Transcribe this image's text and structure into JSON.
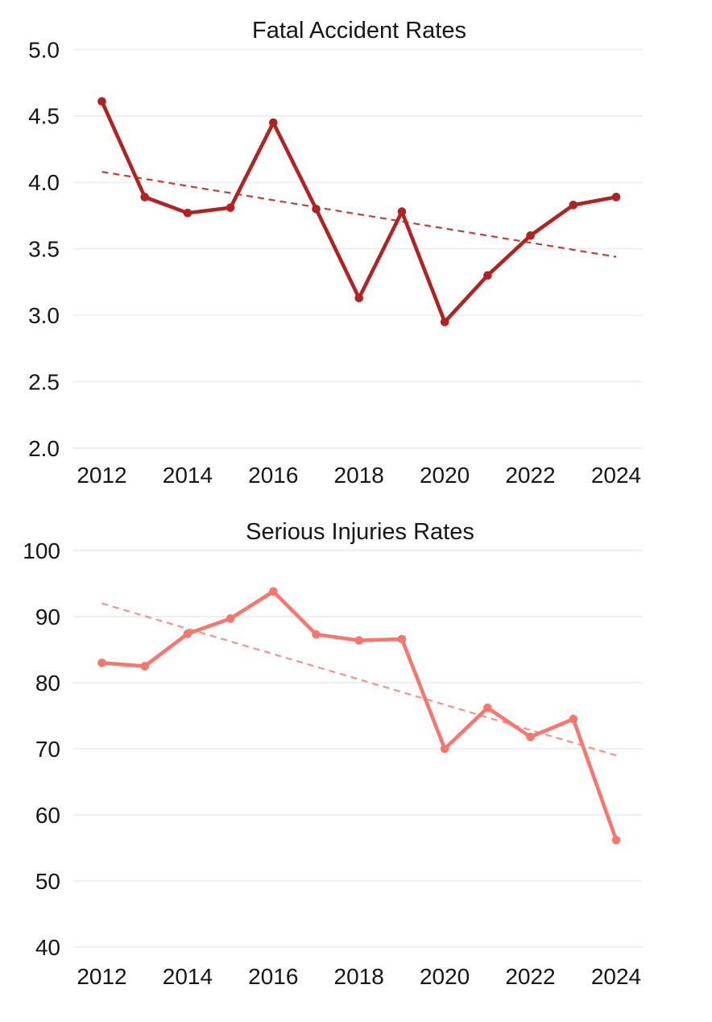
{
  "page": {
    "background_color": "#ffffff",
    "text_color": "#161616",
    "gridline_color": "#efefef"
  },
  "chart_data": [
    {
      "type": "line",
      "title": "Fatal Accident Rates",
      "xlabel": "",
      "ylabel": "",
      "x": [
        2012,
        2013,
        2014,
        2015,
        2016,
        2017,
        2018,
        2019,
        2020,
        2021,
        2022,
        2023,
        2024
      ],
      "series": [
        {
          "name": "fatal_accident_rate",
          "color": "#B22222",
          "marker": "circle",
          "values": [
            4.61,
            3.89,
            3.77,
            3.81,
            4.45,
            3.8,
            3.13,
            3.78,
            2.95,
            3.3,
            3.6,
            3.83,
            3.89
          ]
        }
      ],
      "trendline": {
        "name": "fatal_trend",
        "style": "dashed",
        "color": "#C43E3E",
        "x_start": 2012,
        "x_end": 2024,
        "y_start": 4.08,
        "y_end": 3.44
      },
      "xlim": [
        2012,
        2024
      ],
      "ylim": [
        2.0,
        5.0
      ],
      "y_ticks": [
        "5.0",
        "4.5",
        "4.0",
        "3.5",
        "3.0",
        "2.5",
        "2.0"
      ],
      "x_ticks": [
        "2012",
        "2014",
        "2016",
        "2018",
        "2020",
        "2022",
        "2024"
      ],
      "grid": "horizontal",
      "legend": false
    },
    {
      "type": "line",
      "title": "Serious Injuries Rates",
      "xlabel": "",
      "ylabel": "",
      "x": [
        2012,
        2013,
        2014,
        2015,
        2016,
        2017,
        2018,
        2019,
        2020,
        2021,
        2022,
        2023,
        2024
      ],
      "series": [
        {
          "name": "serious_injuries_rate",
          "color": "#F8766D",
          "marker": "circle",
          "values": [
            83.0,
            82.5,
            87.4,
            89.7,
            93.8,
            87.3,
            86.4,
            86.6,
            70.0,
            76.2,
            71.8,
            74.5,
            56.2
          ]
        }
      ],
      "trendline": {
        "name": "injuries_trend",
        "style": "dashed",
        "color": "#F9918A",
        "x_start": 2012,
        "x_end": 2024,
        "y_start": 92.0,
        "y_end": 69.0
      },
      "xlim": [
        2012,
        2024
      ],
      "ylim": [
        40,
        100
      ],
      "y_ticks": [
        "100",
        "90",
        "80",
        "70",
        "60",
        "50",
        "40"
      ],
      "x_ticks": [
        "2012",
        "2014",
        "2016",
        "2018",
        "2020",
        "2022",
        "2024"
      ],
      "grid": "horizontal",
      "legend": false
    }
  ]
}
